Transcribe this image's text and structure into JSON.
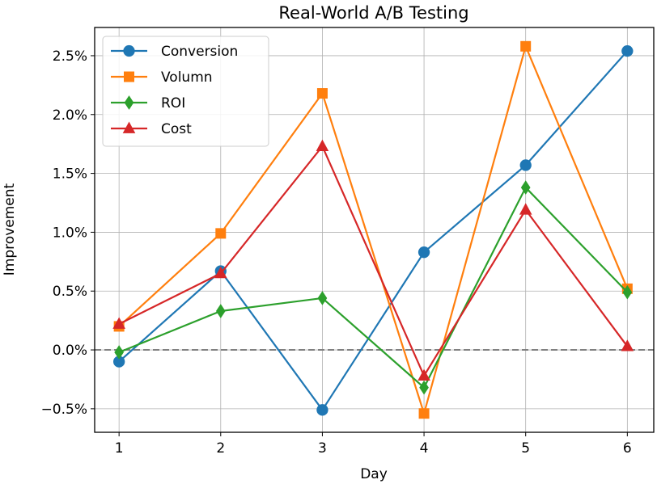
{
  "chart_data": {
    "type": "line",
    "title": "Real-World A/B Testing",
    "xlabel": "Day",
    "ylabel": "Improvement",
    "x": [
      1,
      2,
      3,
      4,
      5,
      6
    ],
    "xticks": [
      "1",
      "2",
      "3",
      "4",
      "5",
      "6"
    ],
    "xlim": [
      0.76,
      6.26
    ],
    "ylim": [
      -0.7,
      2.74
    ],
    "yticks": [
      -0.5,
      0.0,
      0.5,
      1.0,
      1.5,
      2.0,
      2.5
    ],
    "ytick_labels": [
      "−0.5%",
      "0.0%",
      "0.5%",
      "1.0%",
      "1.5%",
      "2.0%",
      "2.5%"
    ],
    "grid": true,
    "reference_line": {
      "y": 0.0,
      "style": "dashed",
      "color": "#808080"
    },
    "legend_position": "upper left",
    "series": [
      {
        "name": "Conversion",
        "color": "#1f77b4",
        "marker": "circle",
        "values": [
          -0.1,
          0.67,
          -0.51,
          0.83,
          1.57,
          2.54
        ]
      },
      {
        "name": "Volumn",
        "color": "#ff7f0e",
        "marker": "square",
        "values": [
          0.2,
          0.99,
          2.18,
          -0.54,
          2.58,
          0.52
        ]
      },
      {
        "name": "ROI",
        "color": "#2ca02c",
        "marker": "diamond",
        "values": [
          -0.02,
          0.33,
          0.44,
          -0.32,
          1.38,
          0.49
        ]
      },
      {
        "name": "Cost",
        "color": "#d62728",
        "marker": "triangle",
        "values": [
          0.22,
          0.65,
          1.73,
          -0.22,
          1.19,
          0.03
        ]
      }
    ]
  }
}
